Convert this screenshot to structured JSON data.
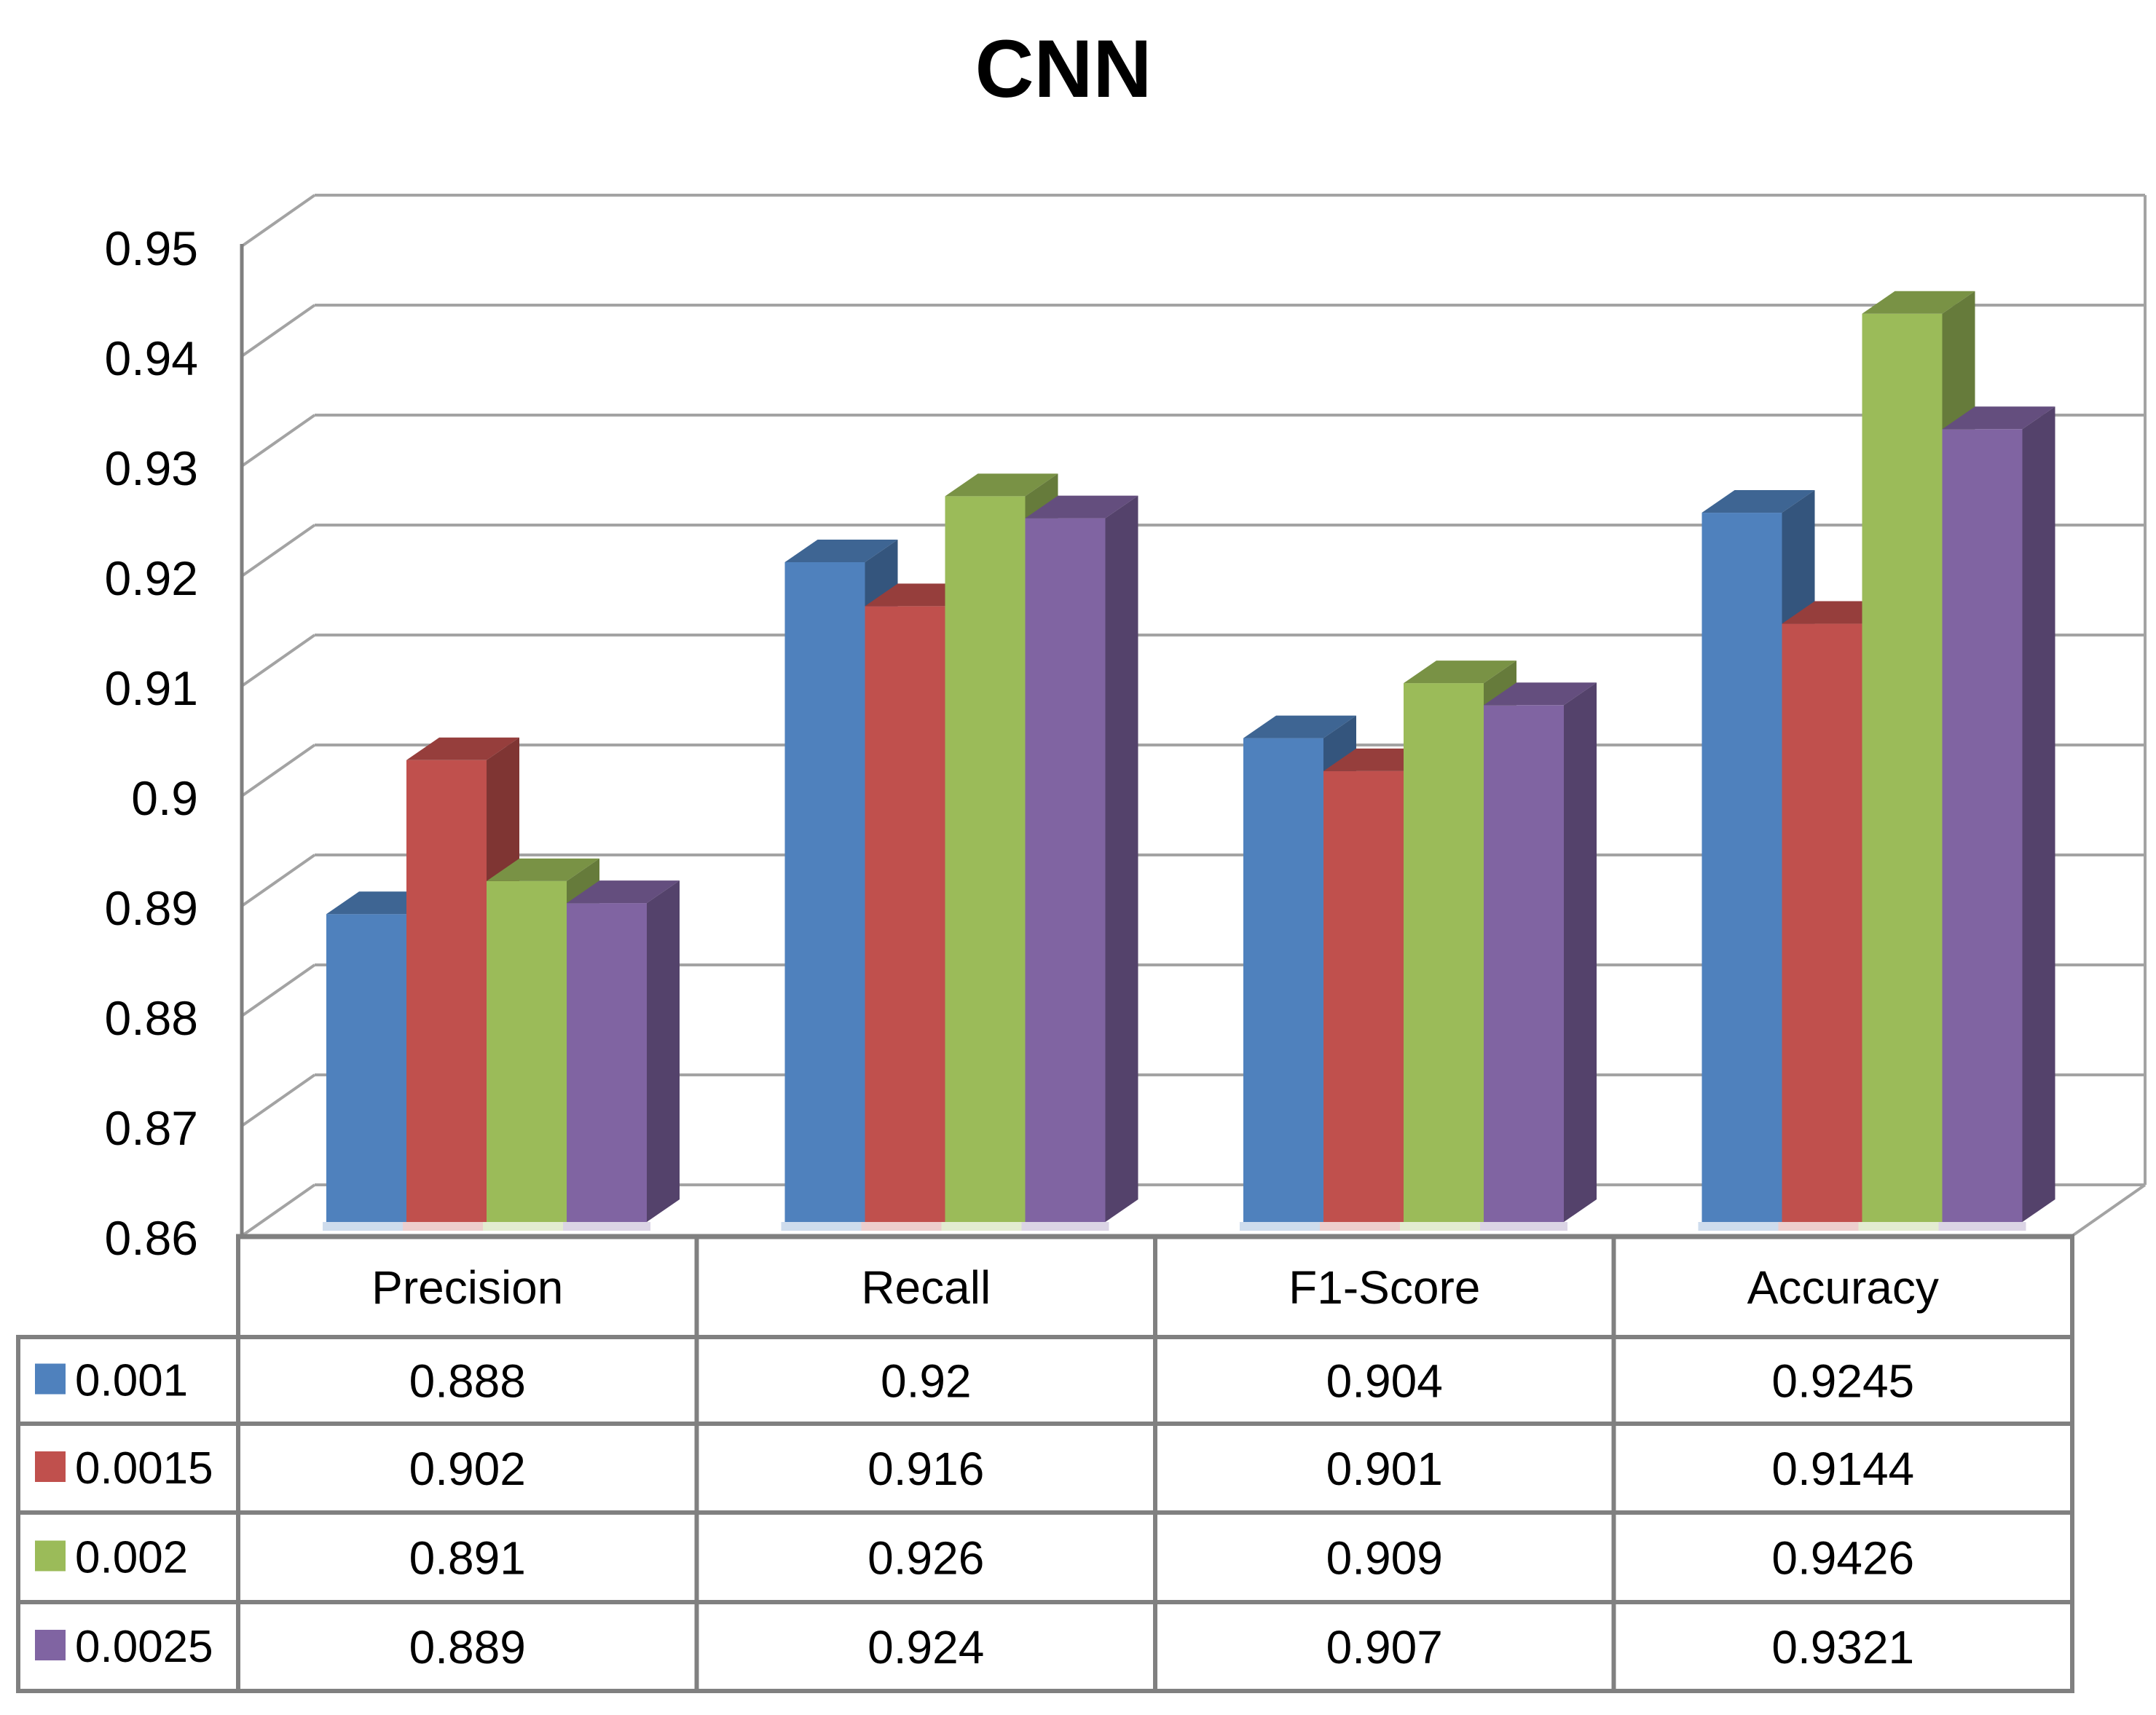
{
  "title": "CNN",
  "colors": {
    "background": "#FFFFFF",
    "gridline": "#A3A3A3",
    "axis_line": "#7F7F7F",
    "table_border": "#808080",
    "text": "#000000",
    "series_blue": "#4F81BD",
    "series_red": "#C0504D",
    "series_green": "#9BBB59",
    "series_purple": "#8064A2"
  },
  "chart_data": {
    "type": "bar",
    "projection": "3d",
    "title": "CNN",
    "xlabel": "",
    "ylabel": "",
    "categories": [
      "Precision",
      "Recall",
      "F1-Score",
      "Accuracy"
    ],
    "series": [
      {
        "name": "0.001",
        "color": "#4F81BD",
        "values": [
          0.888,
          0.92,
          0.904,
          0.9245
        ]
      },
      {
        "name": "0.0015",
        "color": "#C0504D",
        "values": [
          0.902,
          0.916,
          0.901,
          0.9144
        ]
      },
      {
        "name": "0.002",
        "color": "#9BBB59",
        "values": [
          0.891,
          0.926,
          0.909,
          0.9426
        ]
      },
      {
        "name": "0.0025",
        "color": "#8064A2",
        "values": [
          0.889,
          0.924,
          0.907,
          0.9321
        ]
      }
    ],
    "ylim": [
      0.86,
      0.95
    ],
    "ytick_step": 0.01,
    "yticks": [
      "0.95",
      "0.94",
      "0.93",
      "0.92",
      "0.91",
      "0.9",
      "0.89",
      "0.88",
      "0.87",
      "0.86"
    ],
    "grid": true,
    "legend_position": "table-left-column"
  },
  "table": {
    "headers": [
      "Precision",
      "Recall",
      "F1-Score",
      "Accuracy"
    ],
    "rows": [
      {
        "label": "0.001",
        "values": [
          "0.888",
          "0.92",
          "0.904",
          "0.9245"
        ]
      },
      {
        "label": "0.0015",
        "values": [
          "0.902",
          "0.916",
          "0.901",
          "0.9144"
        ]
      },
      {
        "label": "0.002",
        "values": [
          "0.891",
          "0.926",
          "0.909",
          "0.9426"
        ]
      },
      {
        "label": "0.0025",
        "values": [
          "0.889",
          "0.924",
          "0.907",
          "0.9321"
        ]
      }
    ]
  }
}
